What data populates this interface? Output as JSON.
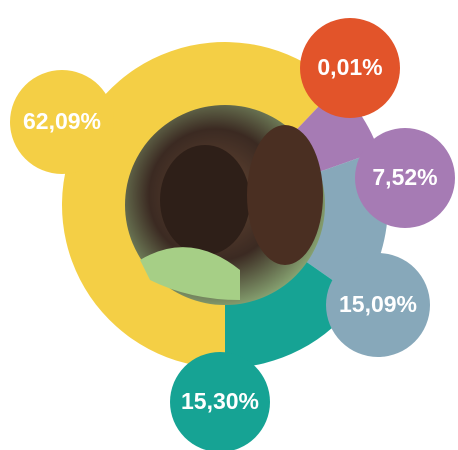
{
  "chart_data": {
    "type": "donut",
    "values": [
      62.09,
      0.01,
      7.52,
      15.09,
      15.3
    ],
    "value_labels": [
      "62,09%",
      "0,01%",
      "7,52%",
      "15,09%",
      "15,30%"
    ],
    "colors": [
      "#f4cf45",
      "#e2542a",
      "#a67bb4",
      "#87a8ba",
      "#16a394"
    ]
  }
}
